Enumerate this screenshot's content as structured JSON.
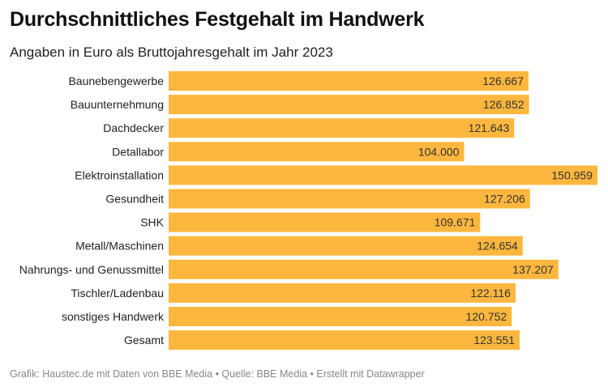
{
  "chart_data": {
    "type": "bar",
    "orientation": "horizontal",
    "title": "Durchschnittliches Festgehalt im Handwerk",
    "subtitle": "Angaben in Euro als Bruttojahresgehalt im Jahr 2023",
    "xlabel": "",
    "ylabel": "",
    "xlim": [
      0,
      150959
    ],
    "grid": false,
    "legend": "none",
    "color": "#fdb73e",
    "categories": [
      "Baunebengewerbe",
      "Bauunternehmung",
      "Dachdecker",
      "Detallabor",
      "Elektroinstallation",
      "Gesundheit",
      "SHK",
      "Metall/Maschinen",
      "Nahrungs- und Genussmittel",
      "Tischler/Ladenbau",
      "sonstiges Handwerk",
      "Gesamt"
    ],
    "values": [
      126667,
      126852,
      121643,
      104000,
      150959,
      127206,
      109671,
      124654,
      137207,
      122116,
      120752,
      123551
    ],
    "value_labels": [
      "126.667",
      "126.852",
      "121.643",
      "104.000",
      "150.959",
      "127.206",
      "109.671",
      "124.654",
      "137.207",
      "122.116",
      "120.752",
      "123.551"
    ]
  },
  "footer": "Grafik: Haustec.de mit Daten von BBE Media • Quelle: BBE Media • Erstellt mit Datawrapper"
}
